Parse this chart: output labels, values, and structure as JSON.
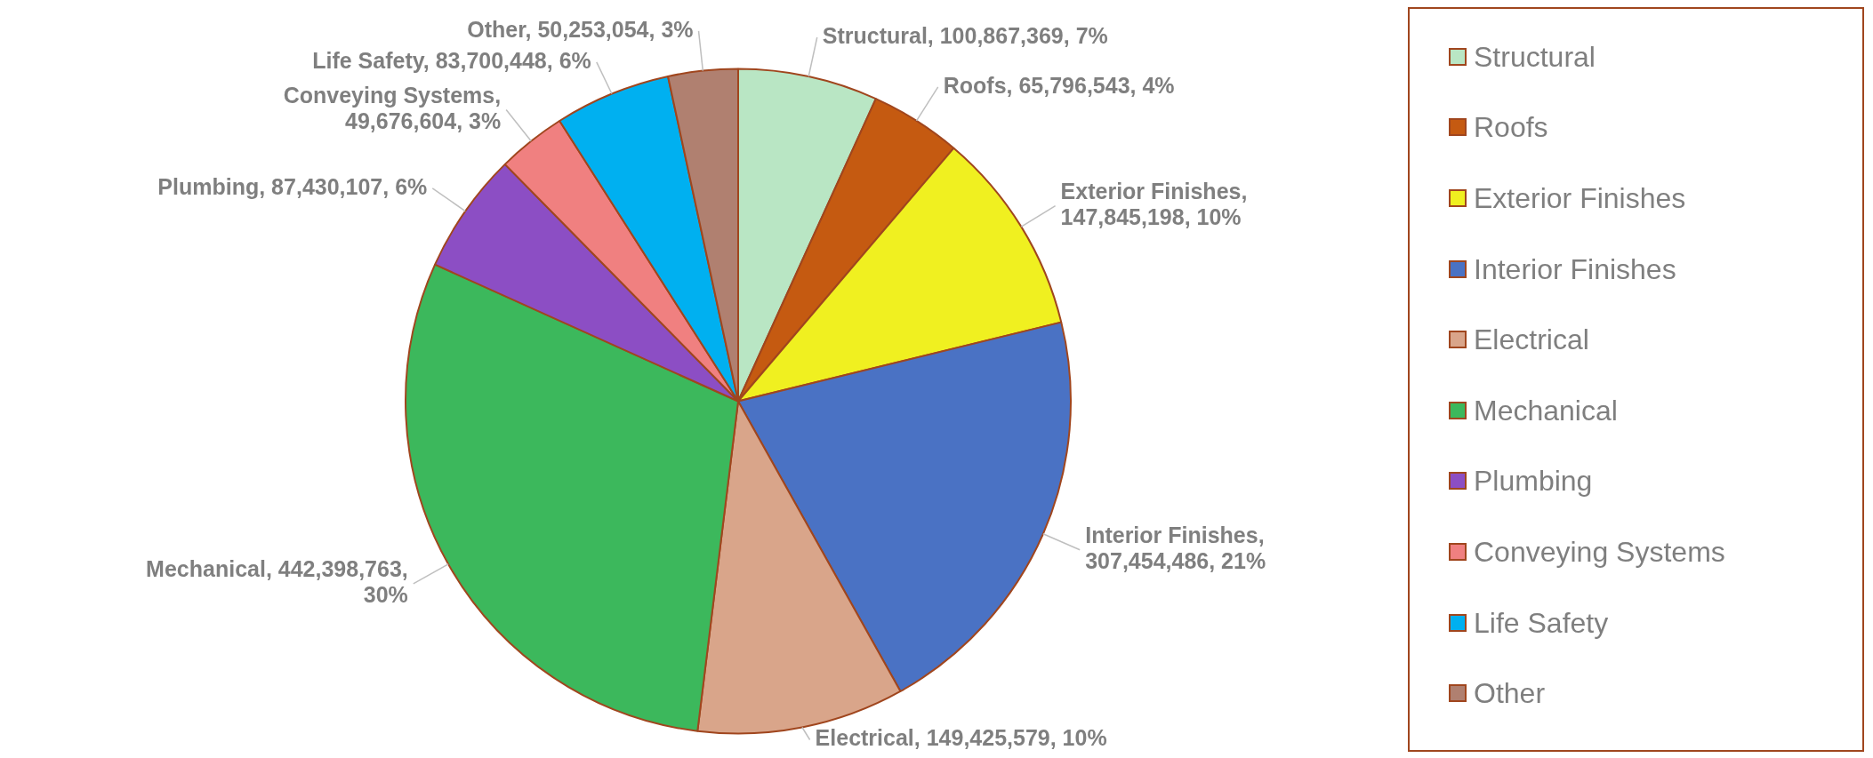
{
  "chart_data": {
    "type": "pie",
    "categories": [
      "Structural",
      "Roofs",
      "Exterior Finishes",
      "Interior Finishes",
      "Electrical",
      "Mechanical",
      "Plumbing",
      "Conveying Systems",
      "Life Safety",
      "Other"
    ],
    "values": [
      100867369,
      65796543,
      147845198,
      307454486,
      149425579,
      442398763,
      87430107,
      49676604,
      83700448,
      50253054
    ],
    "colors": [
      "#b9e6c4",
      "#c55a11",
      "#f0f020",
      "#4a72c4",
      "#d9a58a",
      "#3cb85c",
      "#8c4ec4",
      "#f08080",
      "#00b0f0",
      "#b08070"
    ],
    "value_labels": [
      "Structural, 100,867,369, 7%",
      "Roofs, 65,796,543, 4%",
      "Exterior Finishes,\n147,845,198, 10%",
      "Interior Finishes,\n307,454,486, 21%",
      "Electrical, 149,425,579, 10%",
      "Mechanical, 442,398,763,\n30%",
      "Plumbing, 87,430,107, 6%",
      "Conveying Systems,\n49,676,604, 3%",
      "Life Safety, 83,700,448, 6%",
      "Other, 50,253,054, 3%"
    ],
    "legend": "right"
  }
}
